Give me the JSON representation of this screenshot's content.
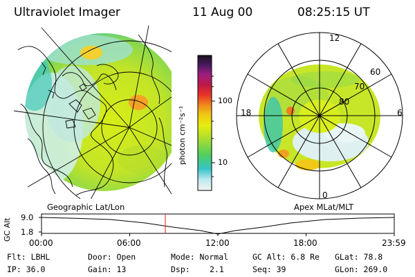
{
  "header": {
    "instrument": "Ultraviolet Imager",
    "date": "11 Aug 00",
    "time": "08:25:15 UT"
  },
  "colorbar": {
    "unit": "photon cm⁻²s⁻¹",
    "ticks": [
      "100",
      "10"
    ]
  },
  "polar": {
    "mlt_labels": [
      "12",
      "18",
      "6",
      "0"
    ],
    "lat_labels": [
      "60",
      "70",
      "80"
    ]
  },
  "captions": {
    "left": "Geographic Lat/Lon",
    "right": "Apex MLat/MLT"
  },
  "timeline": {
    "ylabel": "GC Alt",
    "yticks": [
      "9.0",
      "1.8"
    ],
    "xticks": [
      "00:00",
      "06:00",
      "12:00",
      "18:00",
      "23:59"
    ],
    "marker_fraction": 0.351
  },
  "info": {
    "filter": "Flt: LBHL",
    "ip": "IP: 36.0",
    "door": "Door: Open",
    "gain": "Gain: 13",
    "mode": "Mode: Normal",
    "dsp_label": "Dsp:",
    "dsp_value": "2.1",
    "gc_alt": "GC Alt: 6.8 Re",
    "seq": "Seq: 39",
    "glat": "GLat: 78.8",
    "glon": "GLon: 269.0"
  },
  "colors": {
    "marker": "#e11919"
  }
}
